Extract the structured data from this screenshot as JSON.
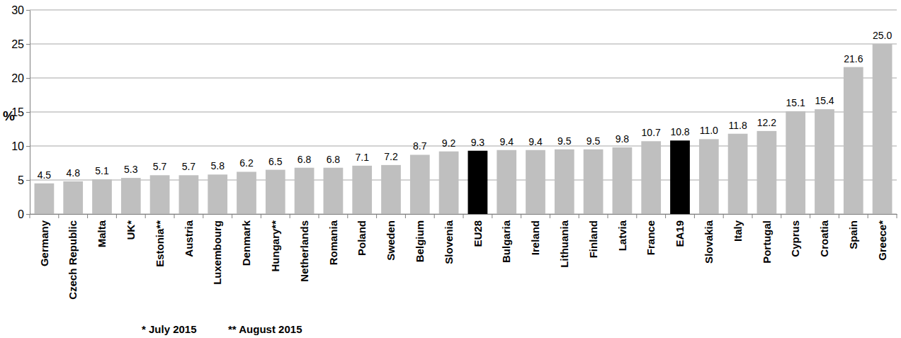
{
  "chart_data": {
    "type": "bar",
    "y_label": "%",
    "categories": [
      "Germany",
      "Czech Republic",
      "Malta",
      "UK*",
      "Estonia**",
      "Austria",
      "Luxembourg",
      "Denmark",
      "Hungary**",
      "Netherlands",
      "Romania",
      "Poland",
      "Sweden",
      "Belgium",
      "Slovenia",
      "EU28",
      "Bulgaria",
      "Ireland",
      "Lithuania",
      "Finland",
      "Latvia",
      "France",
      "EA19",
      "Slovakia",
      "Italy",
      "Portugal",
      "Cyprus",
      "Croatia",
      "Spain",
      "Greece*"
    ],
    "values": [
      4.5,
      4.8,
      5.1,
      5.3,
      5.7,
      5.7,
      5.8,
      6.2,
      6.5,
      6.8,
      6.8,
      7.1,
      7.2,
      8.7,
      9.2,
      9.3,
      9.4,
      9.4,
      9.5,
      9.5,
      9.8,
      10.7,
      10.8,
      11.0,
      11.8,
      12.2,
      15.1,
      15.4,
      21.6,
      25.0
    ],
    "value_labels": [
      "4.5",
      "4.8",
      "5.1",
      "5.3",
      "5.7",
      "5.7",
      "5.8",
      "6.2",
      "6.5",
      "6.8",
      "6.8",
      "7.1",
      "7.2",
      "8.7",
      "9.2",
      "9.3",
      "9.4",
      "9.4",
      "9.5",
      "9.5",
      "9.8",
      "10.7",
      "10.8",
      "11.0",
      "11.8",
      "12.2",
      "15.1",
      "15.4",
      "21.6",
      "25.0"
    ],
    "colors": [
      "#bfbfbf",
      "#bfbfbf",
      "#bfbfbf",
      "#bfbfbf",
      "#bfbfbf",
      "#bfbfbf",
      "#bfbfbf",
      "#bfbfbf",
      "#bfbfbf",
      "#bfbfbf",
      "#bfbfbf",
      "#bfbfbf",
      "#bfbfbf",
      "#bfbfbf",
      "#bfbfbf",
      "#000000",
      "#bfbfbf",
      "#bfbfbf",
      "#bfbfbf",
      "#bfbfbf",
      "#bfbfbf",
      "#bfbfbf",
      "#000000",
      "#bfbfbf",
      "#bfbfbf",
      "#bfbfbf",
      "#bfbfbf",
      "#bfbfbf",
      "#bfbfbf",
      "#bfbfbf"
    ],
    "ylim": [
      0,
      30
    ],
    "yticks": [
      0,
      5,
      10,
      15,
      20,
      25,
      30
    ],
    "grid": true,
    "data_labels": true,
    "annotations": [
      "* July 2015",
      "** August 2015"
    ]
  }
}
